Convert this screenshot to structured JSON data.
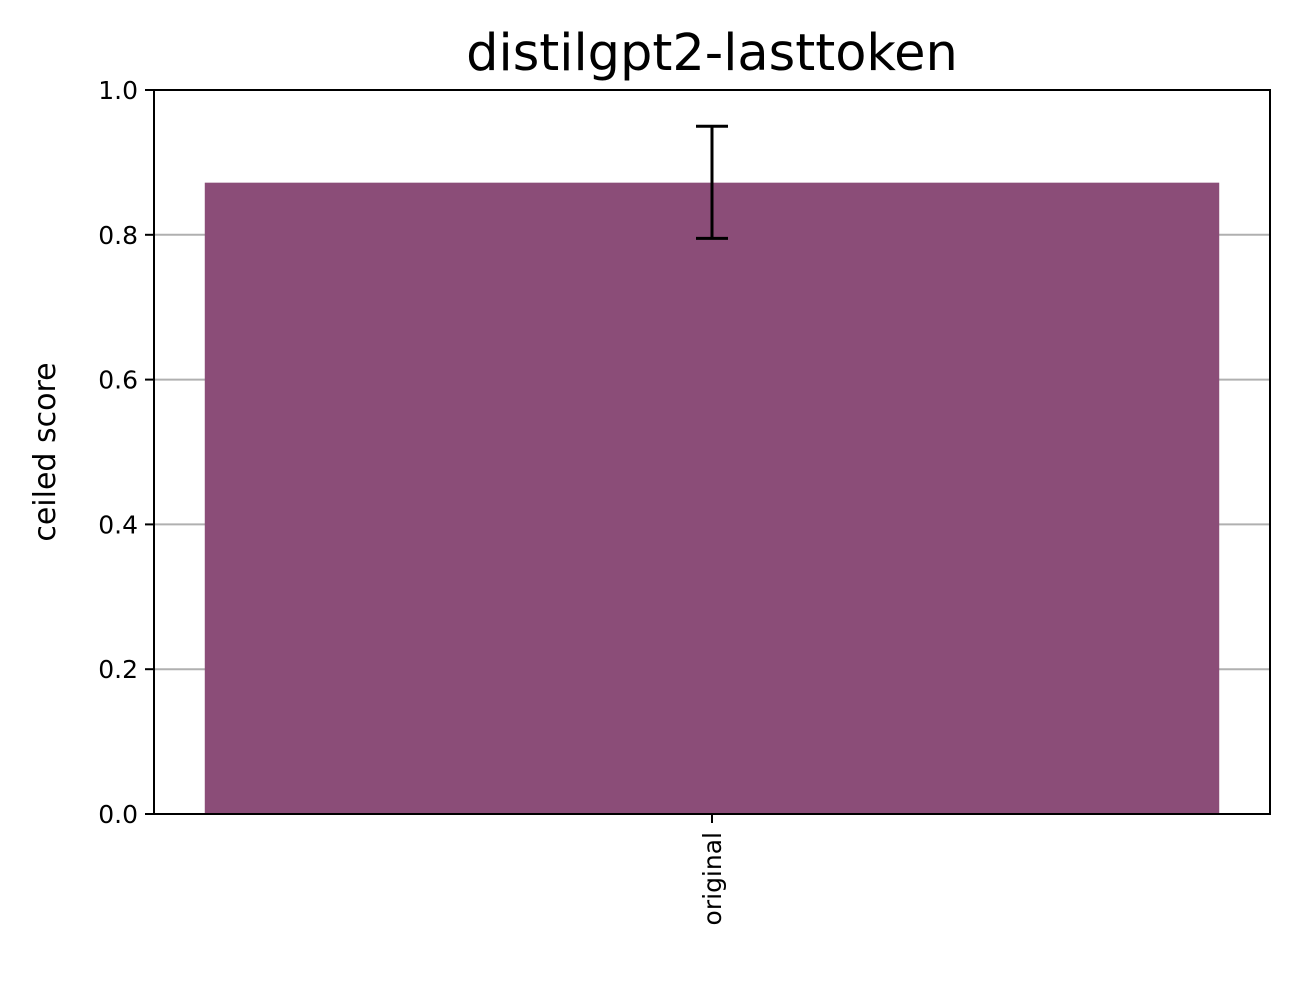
{
  "chart_data": {
    "type": "bar",
    "title": "distilgpt2-lasttoken",
    "xlabel": "",
    "ylabel": "ceiled score",
    "categories": [
      "original"
    ],
    "values": [
      0.872
    ],
    "error_bars": [
      {
        "low": 0.795,
        "high": 0.95
      }
    ],
    "ylim": [
      0,
      1.0
    ],
    "yticks": [
      "0.0",
      "0.2",
      "0.4",
      "0.6",
      "0.8",
      "1.0"
    ],
    "grid": "horizontal",
    "bar_color": "#8b4d78",
    "grid_color": "#b0b0b0"
  }
}
